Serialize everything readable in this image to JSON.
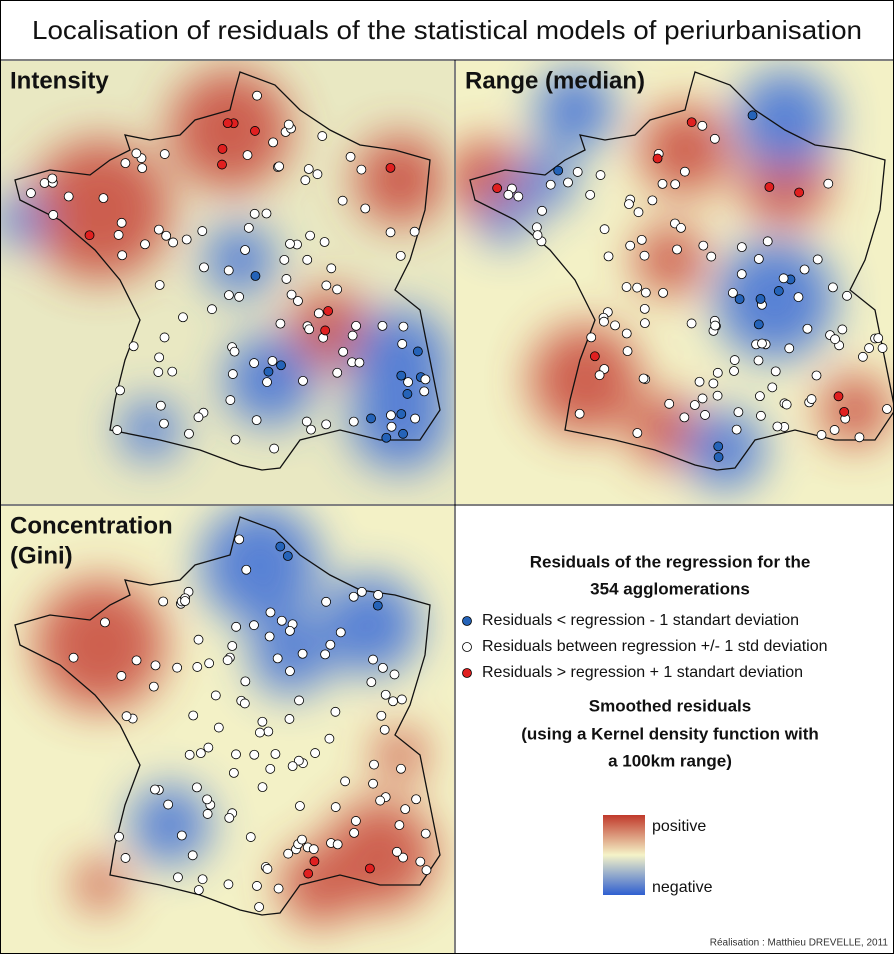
{
  "title": "Localisation of residuals of the statistical models of periurbanisation",
  "panels": [
    {
      "label": [
        "Intensity"
      ]
    },
    {
      "label": [
        "Range (median)"
      ]
    },
    {
      "label": [
        "Concentration",
        "(Gini)"
      ]
    }
  ],
  "legend": {
    "points_title": [
      "Residuals of the regression for the",
      "354 agglomerations"
    ],
    "items": [
      "Residuals < regression - 1 standart deviation",
      "Residuals between regression +/- 1 std deviation",
      "Residuals > regression + 1 standart deviation"
    ],
    "smooth_title": [
      "Smoothed residuals",
      "(using a Kernel density function with",
      "a 100km range)"
    ],
    "positive": "positive",
    "negative": "negative"
  },
  "credit": "Réalisation : Matthieu DREVELLE, 2011"
}
